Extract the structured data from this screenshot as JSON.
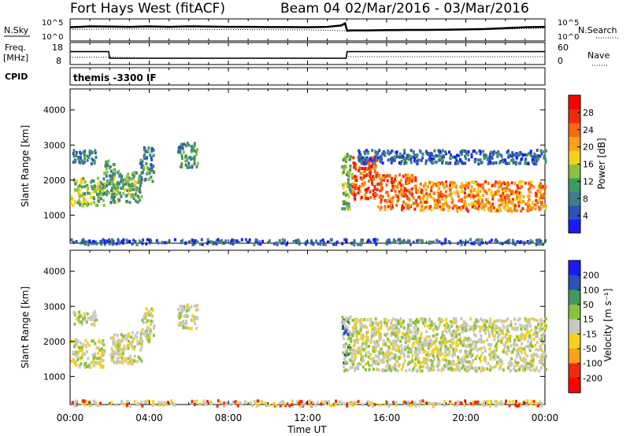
{
  "header": {
    "title": "Fort Hays West (fitACF)",
    "beam": "Beam 04",
    "date_range": "02/Mar/2016 - 03/Mar/2016"
  },
  "chart_data": [
    {
      "type": "line",
      "panel": "noise",
      "left_label": "N.Sky",
      "right_label": "N.Search",
      "yticks_left": [
        "10^5",
        "10^0"
      ],
      "yticks_right": [
        "10^5",
        "10^0"
      ],
      "series": [
        {
          "name": "N.Sky",
          "x": [
            0,
            0.5,
            1,
            2,
            3,
            4,
            5,
            6,
            7,
            8,
            9,
            10,
            11,
            12,
            13,
            13.7,
            13.9,
            14.0,
            14.2,
            15,
            16,
            17,
            18,
            19,
            20,
            21,
            22,
            23,
            24
          ],
          "y": [
            3.1,
            3.2,
            3.3,
            3.25,
            3.2,
            3.3,
            3.2,
            3.3,
            3.25,
            3.2,
            3.2,
            3.15,
            3.15,
            3.1,
            3.2,
            3.5,
            4.0,
            2.3,
            2.4,
            2.4,
            2.45,
            2.5,
            2.5,
            2.55,
            2.6,
            2.7,
            2.9,
            3.1,
            3.2
          ]
        },
        {
          "name": "N.Search",
          "x": [
            0,
            2,
            4,
            6,
            8,
            10,
            12,
            14,
            16,
            18,
            20,
            22,
            24
          ],
          "y": [
            2.6,
            2.7,
            2.7,
            2.65,
            2.6,
            2.55,
            2.5,
            2.3,
            2.35,
            2.4,
            2.5,
            2.7,
            2.9
          ]
        }
      ]
    },
    {
      "type": "line",
      "panel": "frequency",
      "left_label": "Freq.",
      "left_unit": "[MHz]",
      "right_label": "Nave",
      "yticks_left": [
        "18",
        "8"
      ],
      "yticks_right": [
        "60",
        "0"
      ],
      "series": [
        {
          "name": "Freq.",
          "x": [
            0,
            1.95,
            2.0,
            13.95,
            14.0,
            24
          ],
          "y": [
            14,
            14,
            10.5,
            10.5,
            14,
            14
          ]
        },
        {
          "name": "Nave",
          "x": [
            0,
            2,
            4,
            8,
            12,
            13.95,
            14.0,
            18,
            24
          ],
          "y": [
            18,
            18,
            16,
            16,
            16,
            16,
            20,
            20,
            20
          ]
        }
      ]
    },
    {
      "type": "table",
      "panel": "cpid",
      "label": "CPID",
      "value": "themis -3300 IF"
    },
    {
      "type": "heatmap",
      "panel": "power",
      "ylabel": "Slant Range [km]",
      "yticks": [
        1000,
        2000,
        3000,
        4000
      ],
      "ylim": [
        200,
        4600
      ],
      "colorbar_label": "Power [dB]",
      "colorbar_ticks": [
        4,
        8,
        12,
        16,
        20,
        24,
        28
      ],
      "colorbar_range": [
        0,
        32
      ],
      "colors": [
        "#1a1aff",
        "#2a52b8",
        "#3f7d8c",
        "#3f9a5e",
        "#8ac23c",
        "#f2d21c",
        "#f7a21a",
        "#f56a12",
        "#ee2a0c",
        "#ff0000"
      ],
      "regions": [
        {
          "t0": 0.0,
          "t1": 1.7,
          "r0": 1300,
          "r1": 2100,
          "power": 14
        },
        {
          "t0": 0.1,
          "t1": 1.3,
          "r0": 2500,
          "r1": 2900,
          "power": 8
        },
        {
          "t0": 1.6,
          "t1": 2.2,
          "r0": 1500,
          "r1": 2600,
          "power": 10
        },
        {
          "t0": 2.0,
          "t1": 3.6,
          "r0": 1400,
          "r1": 2300,
          "power": 12
        },
        {
          "t0": 3.5,
          "t1": 4.2,
          "r0": 2000,
          "r1": 3000,
          "power": 9
        },
        {
          "t0": 5.4,
          "t1": 6.4,
          "r0": 2400,
          "r1": 3100,
          "power": 10
        },
        {
          "t0": 13.7,
          "t1": 14.2,
          "r0": 1200,
          "r1": 2800,
          "power": 14
        },
        {
          "t0": 14.2,
          "t1": 15.5,
          "r0": 1500,
          "r1": 2700,
          "power": 26
        },
        {
          "t0": 15.5,
          "t1": 17.5,
          "r0": 1200,
          "r1": 2200,
          "power": 24
        },
        {
          "t0": 17.5,
          "t1": 24.0,
          "r0": 1150,
          "r1": 2000,
          "power": 22
        },
        {
          "t0": 14.5,
          "t1": 24.0,
          "r0": 2500,
          "r1": 2900,
          "power": 6
        },
        {
          "t0": 0.0,
          "t1": 24.0,
          "r0": 200,
          "r1": 350,
          "power": 6
        }
      ]
    },
    {
      "type": "heatmap",
      "panel": "velocity",
      "ylabel": "Slant Range [km]",
      "yticks": [
        1000,
        2000,
        3000,
        4000
      ],
      "ylim": [
        200,
        4600
      ],
      "colorbar_label": "Velocity [m s⁻¹]",
      "colorbar_ticks": [
        200,
        100,
        50,
        15,
        -15,
        -50,
        -100,
        -200
      ],
      "colors": [
        "#1a1aff",
        "#2a52b8",
        "#3f9a5e",
        "#8ac23c",
        "#c8c8c0",
        "#f2d21c",
        "#f7a21a",
        "#ee2a0c",
        "#ff0000"
      ],
      "regions": [
        {
          "t0": 0.0,
          "t1": 1.7,
          "r0": 1300,
          "r1": 2100,
          "velocity": 0
        },
        {
          "t0": 0.1,
          "t1": 1.3,
          "r0": 2500,
          "r1": 2900,
          "velocity": 0
        },
        {
          "t0": 2.0,
          "t1": 3.6,
          "r0": 1400,
          "r1": 2300,
          "velocity": 0
        },
        {
          "t0": 3.5,
          "t1": 4.2,
          "r0": 2000,
          "r1": 3000,
          "velocity": 0
        },
        {
          "t0": 5.4,
          "t1": 6.4,
          "r0": 2400,
          "r1": 3100,
          "velocity": 0
        },
        {
          "t0": 13.7,
          "t1": 14.2,
          "r0": 1200,
          "r1": 2800,
          "velocity": 40
        },
        {
          "t0": 14.2,
          "t1": 24.0,
          "r0": 1200,
          "r1": 2700,
          "velocity": 0
        },
        {
          "t0": 0.0,
          "t1": 24.0,
          "r0": 200,
          "r1": 350,
          "velocity": -40
        }
      ]
    }
  ],
  "xaxis": {
    "label": "Time UT",
    "ticks": [
      "00:00",
      "04:00",
      "08:00",
      "12:00",
      "16:00",
      "20:00",
      "00:00"
    ],
    "xlim": [
      0,
      24
    ]
  }
}
